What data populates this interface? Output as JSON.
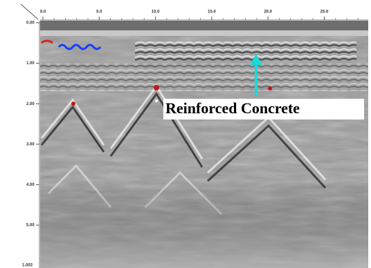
{
  "x_axis": {
    "ticks": [
      "0.0",
      "5.0",
      "10.0",
      "15.0",
      "20.0",
      "25.0"
    ]
  },
  "y_axis": {
    "ticks": [
      "0.00",
      "1.00",
      "2.00",
      "3.00",
      "4.00",
      "5.00"
    ]
  },
  "corner_label": "1.003",
  "annotation": "Reinforced Concrete"
}
